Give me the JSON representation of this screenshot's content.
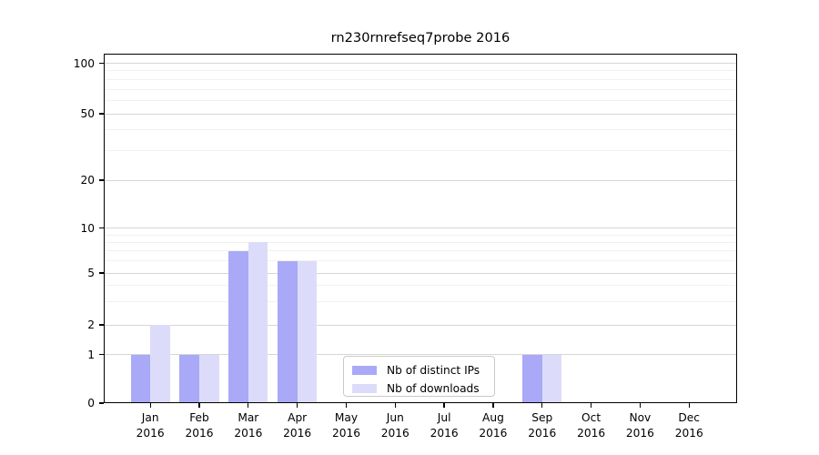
{
  "chart_data": {
    "type": "bar",
    "title": "rn230rnrefseq7probe 2016",
    "categories": [
      "Jan 2016",
      "Feb 2016",
      "Mar 2016",
      "Apr 2016",
      "May 2016",
      "Jun 2016",
      "Jul 2016",
      "Aug 2016",
      "Sep 2016",
      "Oct 2016",
      "Nov 2016",
      "Dec 2016"
    ],
    "month_labels": [
      "Jan",
      "Feb",
      "Mar",
      "Apr",
      "May",
      "Jun",
      "Jul",
      "Aug",
      "Sep",
      "Oct",
      "Nov",
      "Dec"
    ],
    "year_label": "2016",
    "series": [
      {
        "name": "Nb of distinct IPs",
        "color": "#a9a9f7",
        "values": [
          1,
          1,
          7,
          6,
          0,
          0,
          0,
          0,
          1,
          0,
          0,
          0
        ]
      },
      {
        "name": "Nb of downloads",
        "color": "#dcdcfa",
        "values": [
          2,
          1,
          8,
          6,
          0,
          0,
          0,
          0,
          1,
          0,
          0,
          0
        ]
      }
    ],
    "yscale": "log",
    "yticks": [
      0,
      1,
      2,
      5,
      10,
      20,
      50,
      100
    ],
    "yticks_minor": [
      3,
      4,
      6,
      7,
      8,
      9,
      30,
      40,
      60,
      70,
      80,
      90
    ],
    "ylim": [
      0,
      100
    ],
    "xlabel": "",
    "ylabel": "",
    "grid": true,
    "legend_position": "lower center",
    "colors": {
      "axis": "#000000",
      "grid_major": "#d6d6d6",
      "grid_minor": "#f1f1f1",
      "background": "#ffffff"
    }
  }
}
